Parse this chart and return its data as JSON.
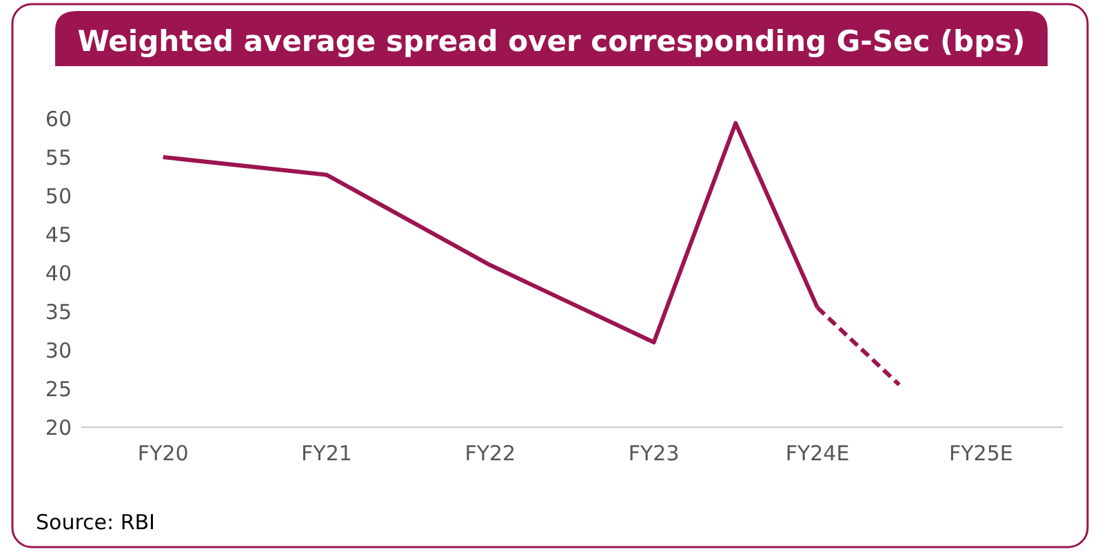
{
  "chart_data": {
    "type": "line",
    "title": "Weighted average spread over corresponding G-Sec (bps)",
    "categories": [
      "FY20",
      null,
      "FY21",
      null,
      "FY22",
      null,
      "FY23",
      null,
      "FY24E",
      null,
      "FY25E"
    ],
    "ylim": [
      20,
      60
    ],
    "yticks": [
      20,
      25,
      30,
      35,
      40,
      45,
      50,
      55,
      60
    ],
    "grid": false,
    "marker": "none",
    "series": [
      {
        "color": "#9c1450",
        "line_style": "solid",
        "values": [
          55,
          null,
          52.7,
          null,
          41,
          null,
          31,
          59.4,
          35.5,
          null,
          null
        ]
      },
      {
        "color": "#9c1450",
        "line_style": "dashed",
        "values": [
          null,
          null,
          null,
          null,
          null,
          null,
          null,
          null,
          35.5,
          25.5,
          null
        ]
      }
    ],
    "annotations": [
      "Source: RBI"
    ]
  }
}
